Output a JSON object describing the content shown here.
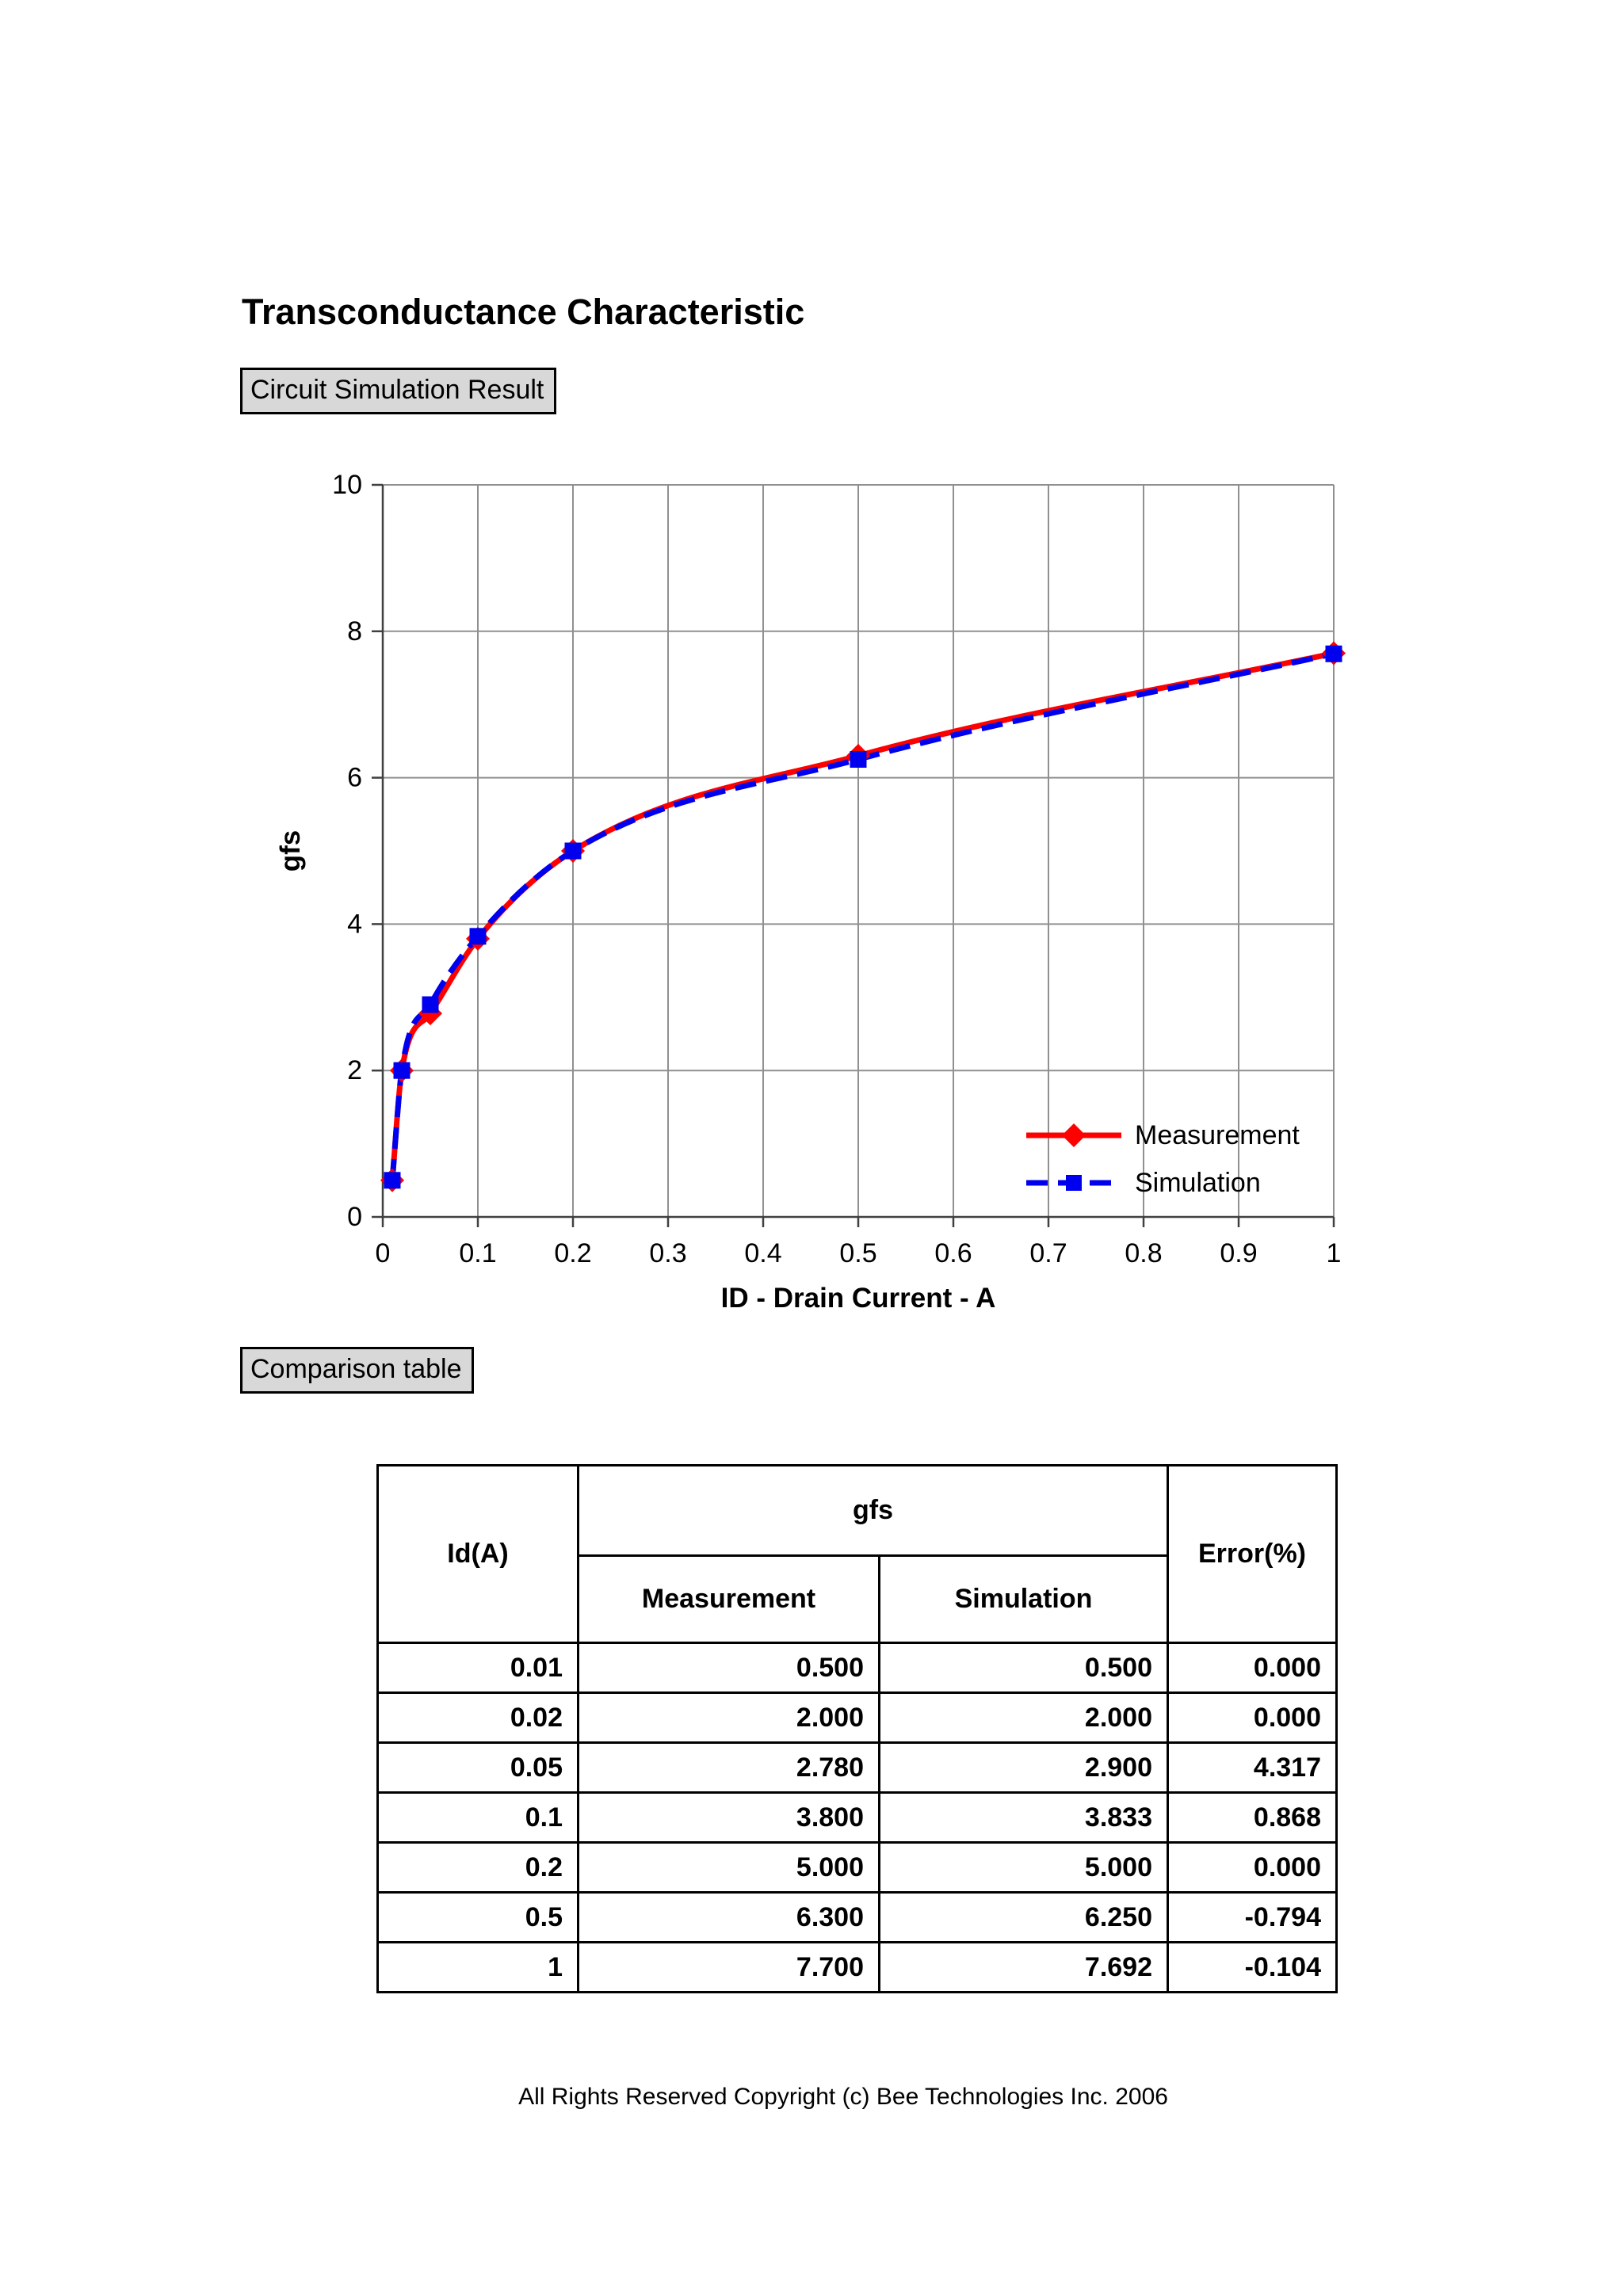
{
  "page": {
    "title": "Transconductance Characteristic",
    "section1_label": "Circuit Simulation Result",
    "section2_label": "Comparison table",
    "footer": "All Rights Reserved Copyright (c) Bee Technologies Inc. 2006"
  },
  "colors": {
    "measurement": "#FF0000",
    "simulation": "#0000EE",
    "gridline": "#909090",
    "axis": "#404040",
    "label_box_bg": "#D8D8D8"
  },
  "chart_data": {
    "type": "line",
    "title": "",
    "xlabel": "ID - Drain Current - A",
    "ylabel": "gfs",
    "xlim": [
      0,
      1
    ],
    "ylim": [
      0,
      10
    ],
    "x_ticks": [
      0,
      0.1,
      0.2,
      0.3,
      0.4,
      0.5,
      0.6,
      0.7,
      0.8,
      0.9,
      1
    ],
    "x_tick_labels": [
      "0",
      "0.1",
      "0.2",
      "0.3",
      "0.4",
      "0.5",
      "0.6",
      "0.7",
      "0.8",
      "0.9",
      "1"
    ],
    "y_ticks": [
      0,
      2,
      4,
      6,
      8,
      10
    ],
    "y_tick_labels": [
      "0",
      "2",
      "4",
      "6",
      "8",
      "10"
    ],
    "grid": true,
    "legend_position": "inside-bottom-right",
    "series": [
      {
        "name": "Measurement",
        "color": "#FF0000",
        "style": "solid",
        "marker": "diamond",
        "x": [
          0.01,
          0.02,
          0.05,
          0.1,
          0.2,
          0.5,
          1
        ],
        "y": [
          0.5,
          2.0,
          2.78,
          3.8,
          5.0,
          6.3,
          7.7
        ]
      },
      {
        "name": "Simulation",
        "color": "#0000EE",
        "style": "dashed",
        "marker": "square",
        "x": [
          0.01,
          0.02,
          0.05,
          0.1,
          0.2,
          0.5,
          1
        ],
        "y": [
          0.5,
          2.0,
          2.9,
          3.833,
          5.0,
          6.25,
          7.692
        ]
      }
    ]
  },
  "table": {
    "col1_header": "Id(A)",
    "group_header": "gfs",
    "sub_headers": [
      "Measurement",
      "Simulation"
    ],
    "error_header": "Error(%)",
    "rows": [
      [
        "0.01",
        "0.500",
        "0.500",
        "0.000"
      ],
      [
        "0.02",
        "2.000",
        "2.000",
        "0.000"
      ],
      [
        "0.05",
        "2.780",
        "2.900",
        "4.317"
      ],
      [
        "0.1",
        "3.800",
        "3.833",
        "0.868"
      ],
      [
        "0.2",
        "5.000",
        "5.000",
        "0.000"
      ],
      [
        "0.5",
        "6.300",
        "6.250",
        "-0.794"
      ],
      [
        "1",
        "7.700",
        "7.692",
        "-0.104"
      ]
    ]
  }
}
